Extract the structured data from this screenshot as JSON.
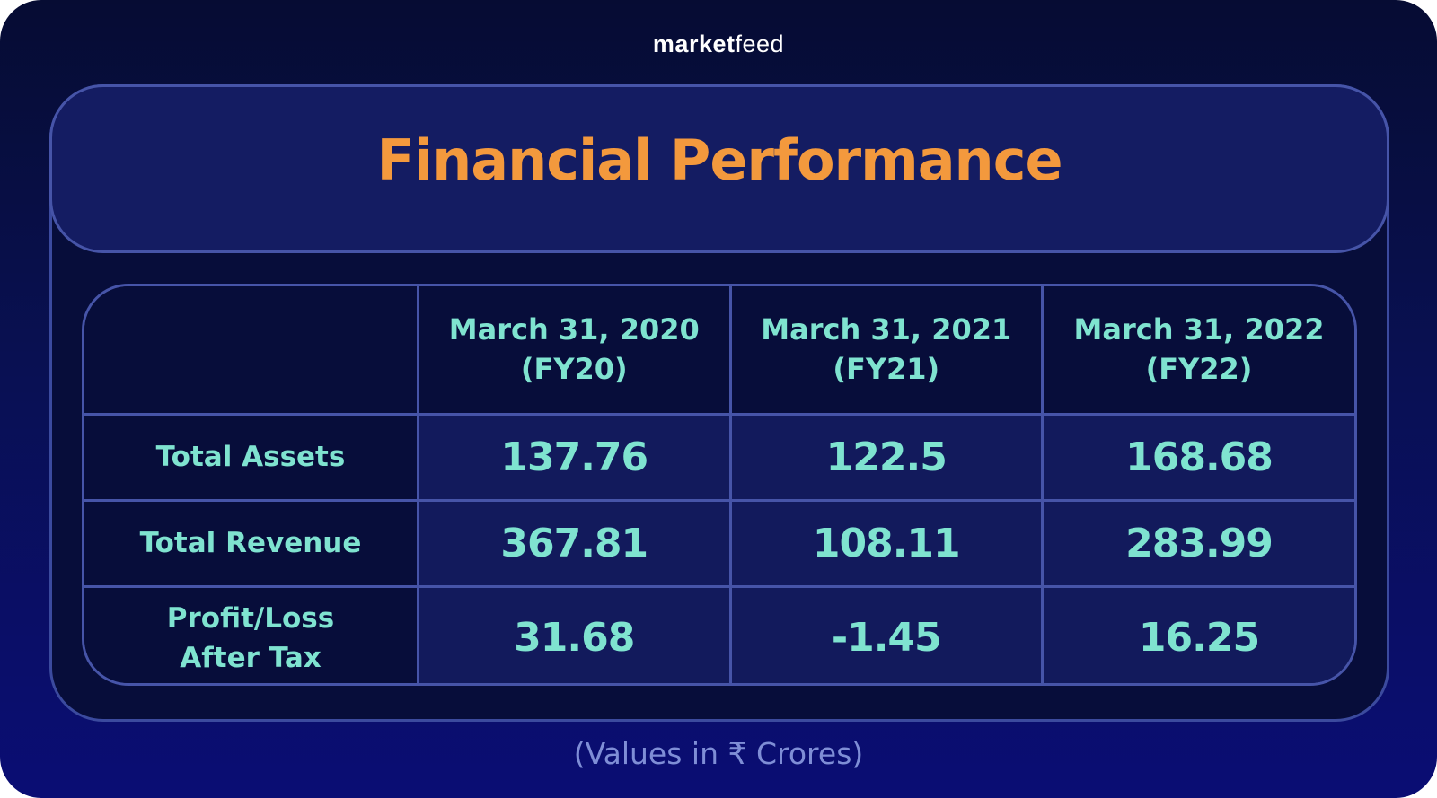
{
  "brand": {
    "part1": "marke",
    "dot": "t",
    "part2": "feed"
  },
  "title": "Financial Performance",
  "table": {
    "columns": [
      {
        "line1": "March 31, 2020",
        "line2": "(FY20)"
      },
      {
        "line1": "March 31, 2021",
        "line2": "(FY21)"
      },
      {
        "line1": "March 31, 2022",
        "line2": "(FY22)"
      }
    ],
    "rows": [
      {
        "label_line1": "Total Assets",
        "label_line2": "",
        "values": [
          "137.76",
          "122.5",
          "168.68"
        ]
      },
      {
        "label_line1": "Total Revenue",
        "label_line2": "",
        "values": [
          "367.81",
          "108.11",
          "283.99"
        ]
      },
      {
        "label_line1": "Profit/Loss",
        "label_line2": "After Tax",
        "values": [
          "31.68",
          "-1.45",
          "16.25"
        ]
      }
    ]
  },
  "footnote": "(Values in ₹ Crores)",
  "colors": {
    "title": "#f3993d",
    "cell_text": "#7fe3d0",
    "footnote": "#7f8ed6",
    "border": "#4654a8"
  }
}
